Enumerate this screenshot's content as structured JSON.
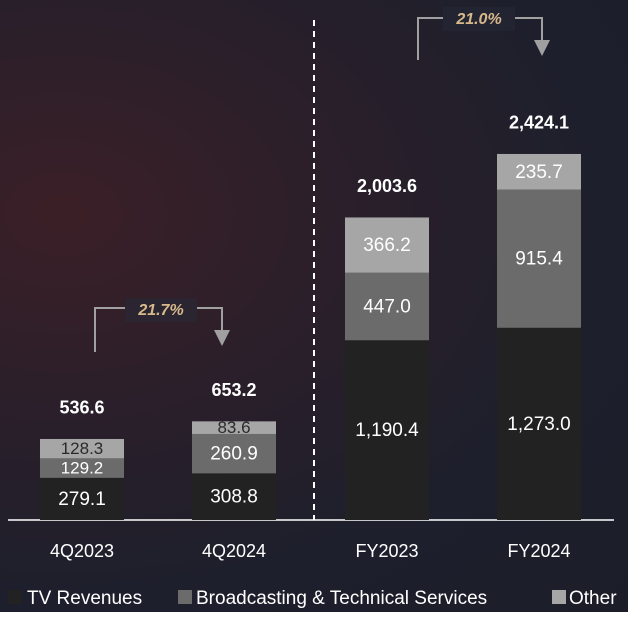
{
  "chart_data": {
    "type": "stacked_bar",
    "categories": [
      "4Q2023",
      "4Q2024",
      "FY2023",
      "FY2024"
    ],
    "series": [
      {
        "name": "TV Revenues",
        "color": "#222222",
        "values": [
          279.1,
          308.8,
          1190.4,
          1273.0
        ],
        "value_labels": [
          "279.1",
          "308.8",
          "1,190.4",
          "1,273.0"
        ]
      },
      {
        "name": "Broadcasting & Technical Services",
        "color": "#6b6b6b",
        "values": [
          129.2,
          260.9,
          447.0,
          915.4
        ],
        "value_labels": [
          "129.2",
          "260.9",
          "447.0",
          "915.4"
        ]
      },
      {
        "name": "Other",
        "color": "#a6a6a6",
        "values": [
          128.3,
          83.6,
          366.2,
          235.7
        ]
      }
    ],
    "totals": [
      536.6,
      653.2,
      2003.6,
      2424.1
    ],
    "total_labels": [
      "536.6",
      "653.2",
      "2,003.6",
      "2,424.1"
    ],
    "annotations": [
      "21.7%",
      "21.0%"
    ],
    "ylim": [
      0,
      3000
    ]
  }
}
